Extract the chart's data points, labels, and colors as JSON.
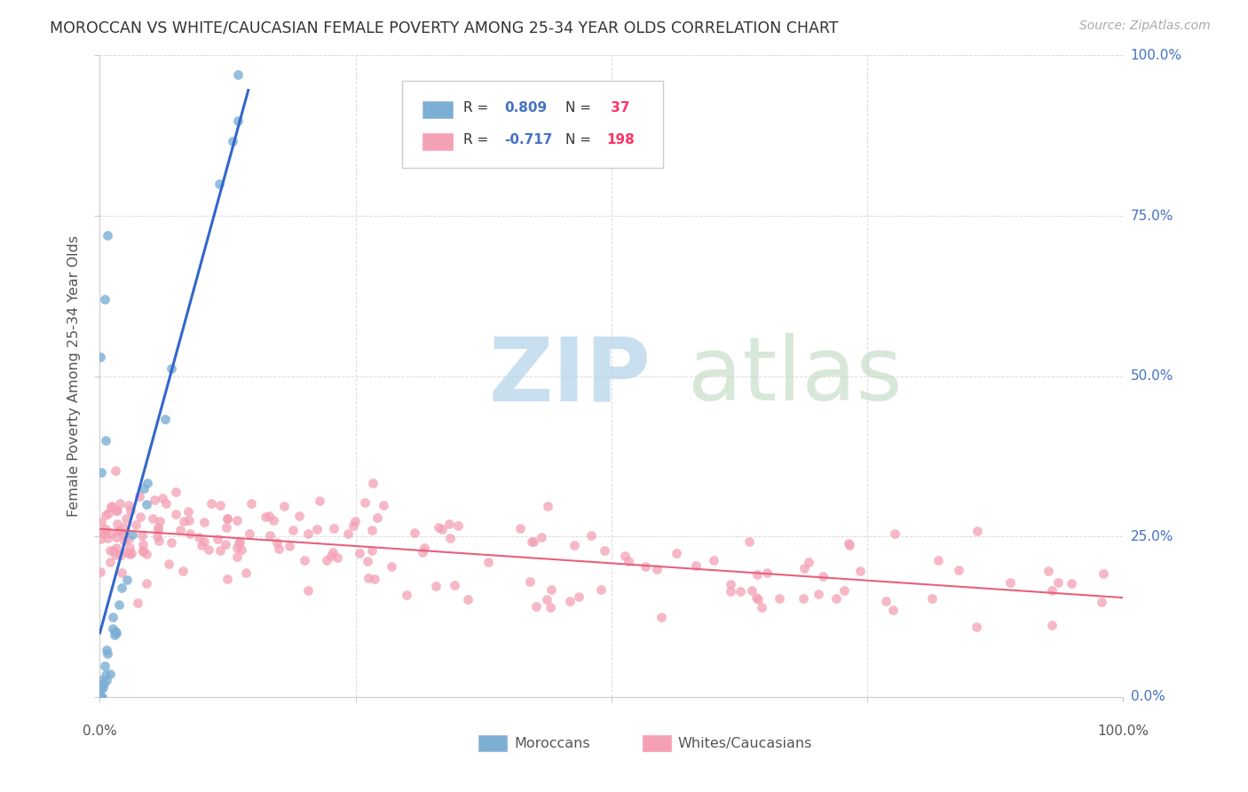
{
  "title": "MOROCCAN VS WHITE/CAUCASIAN FEMALE POVERTY AMONG 25-34 YEAR OLDS CORRELATION CHART",
  "source": "Source: ZipAtlas.com",
  "ylabel": "Female Poverty Among 25-34 Year Olds",
  "moroccan_color": "#7bafd4",
  "white_color": "#f4a0b5",
  "moroccan_R": 0.809,
  "moroccan_N": 37,
  "white_R": -0.717,
  "white_N": 198,
  "moroccan_line_color": "#3366cc",
  "white_line_color": "#e8607a",
  "watermark_zip_color": "#c8dff0",
  "watermark_atlas_color": "#d8e8d8",
  "background_color": "#ffffff",
  "grid_color": "#cccccc",
  "title_color": "#333333",
  "source_color": "#aaaaaa",
  "axis_label_color": "#4472c4",
  "legend_R_color": "#4472c4",
  "legend_N_color": "#ff3366",
  "text_color": "#555555"
}
